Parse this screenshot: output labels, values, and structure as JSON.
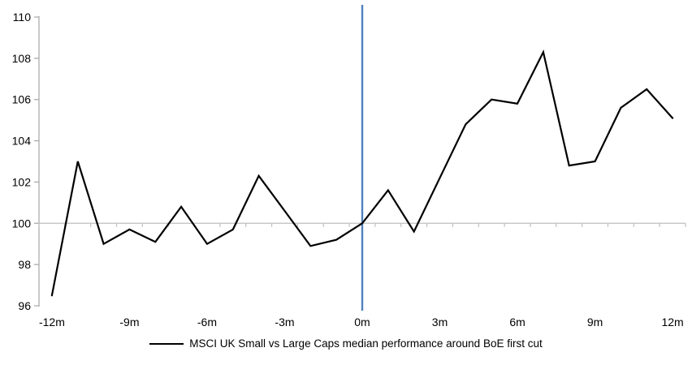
{
  "chart_data": {
    "type": "line",
    "title": "",
    "xlabel": "",
    "ylabel": "",
    "x": [
      -12,
      -11,
      -10,
      -9,
      -8,
      -7,
      -6,
      -5,
      -4,
      -3,
      -2,
      -1,
      0,
      1,
      2,
      3,
      4,
      5,
      6,
      7,
      8,
      9,
      10,
      11,
      12
    ],
    "series": [
      {
        "name": "MSCI UK Small vs Large Caps median performance around BoE first cut",
        "color": "#000000",
        "values": [
          96.5,
          103.0,
          99.0,
          99.7,
          99.1,
          100.8,
          99.0,
          99.7,
          102.3,
          100.6,
          98.9,
          99.2,
          100.0,
          101.6,
          99.6,
          102.2,
          104.8,
          106.0,
          105.8,
          108.3,
          102.8,
          103.0,
          105.6,
          106.5,
          105.1
        ]
      }
    ],
    "ylim": [
      96,
      110
    ],
    "xlim": [
      -12.5,
      12.5
    ],
    "yticks": [
      96,
      98,
      100,
      102,
      104,
      106,
      108,
      110
    ],
    "ytick_labels": [
      "96",
      "98",
      "100",
      "102",
      "104",
      "106",
      "108",
      "110"
    ],
    "xticks": [
      -12,
      -9,
      -6,
      -3,
      0,
      3,
      6,
      9,
      12
    ],
    "xtick_labels": [
      "-12m",
      "-9m",
      "-6m",
      "-3m",
      "0m",
      "3m",
      "6m",
      "9m",
      "12m"
    ],
    "baseline": {
      "value": 100,
      "color": "#bfbfbf"
    },
    "event_line": {
      "x": 0,
      "color": "#4f81bd"
    },
    "axis_color": "#a6a6a6",
    "text_color": "#000000",
    "grid": "off",
    "legend_position": "bottom"
  },
  "legend": {
    "label": "MSCI UK Small vs Large Caps median performance around BoE first cut"
  }
}
